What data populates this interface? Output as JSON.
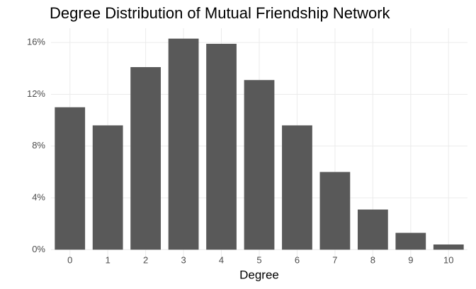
{
  "chart_data": {
    "type": "bar",
    "title": "Degree Distribution of Mutual Friendship Network",
    "x_label": "Degree",
    "categories": [
      "0",
      "1",
      "2",
      "3",
      "4",
      "5",
      "6",
      "7",
      "8",
      "9",
      "10"
    ],
    "values": [
      11.0,
      9.6,
      14.1,
      16.3,
      15.9,
      13.1,
      9.6,
      6.0,
      3.1,
      1.3,
      0.4
    ],
    "color": "#595959",
    "ylim": [
      -0.8,
      17.1
    ],
    "yticks": [
      {
        "value": 0,
        "label": "0%"
      },
      {
        "value": 4,
        "label": "4%"
      },
      {
        "value": 8,
        "label": "8%"
      },
      {
        "value": 12,
        "label": "12%"
      },
      {
        "value": 16,
        "label": "16%"
      }
    ],
    "grid": true
  }
}
